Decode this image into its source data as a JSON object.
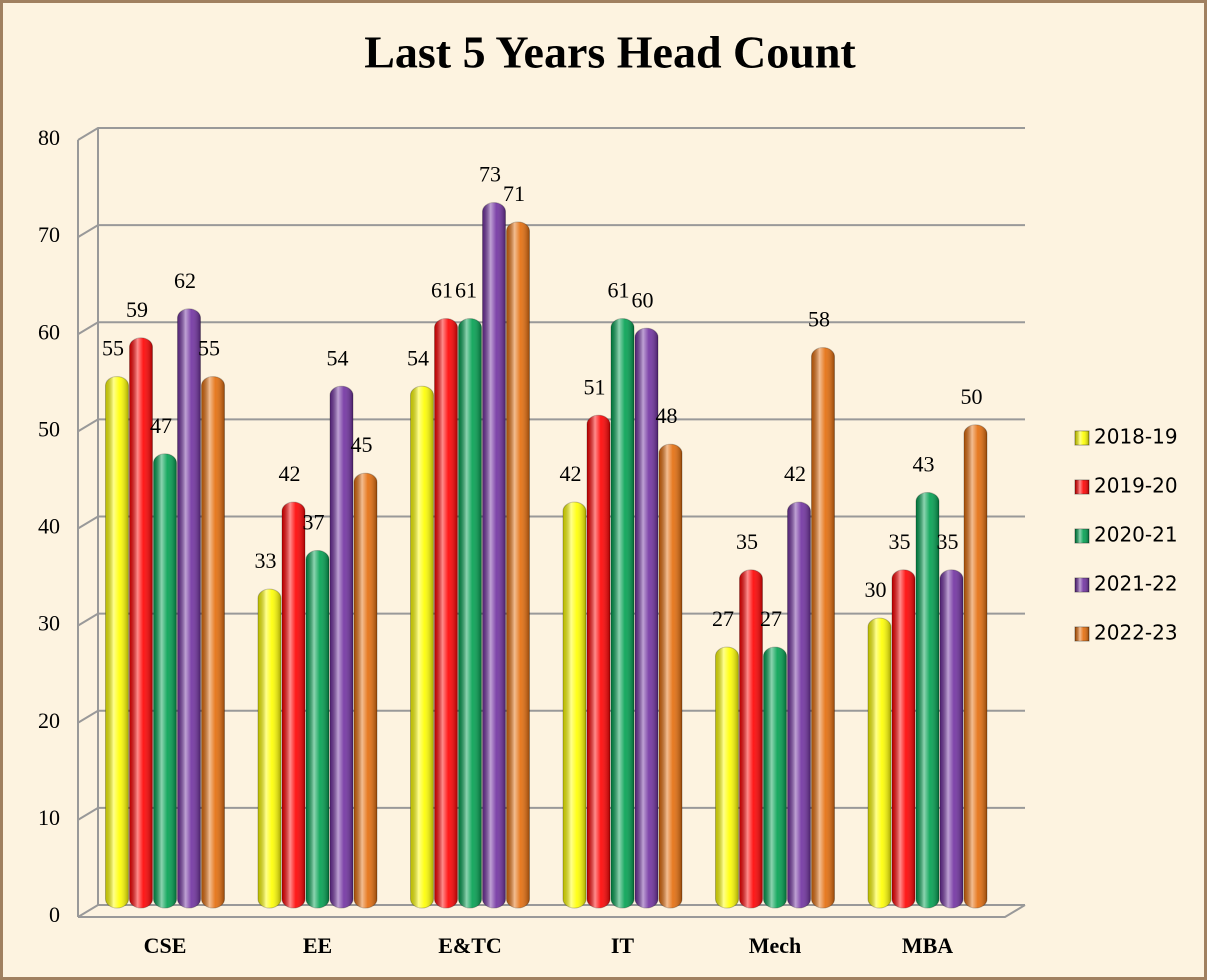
{
  "chart_data": {
    "type": "bar",
    "title": "Last 5 Years Head Count",
    "categories": [
      "CSE",
      "EE",
      "E&TC",
      "IT",
      "Mech",
      "MBA"
    ],
    "series": [
      {
        "name": "2018-19",
        "color": "#ffff00",
        "values": [
          55,
          33,
          54,
          42,
          27,
          30
        ]
      },
      {
        "name": "2019-20",
        "color": "#ff0000",
        "values": [
          59,
          42,
          61,
          51,
          35,
          35
        ]
      },
      {
        "name": "2020-21",
        "color": "#00a050",
        "values": [
          47,
          37,
          61,
          61,
          27,
          43
        ]
      },
      {
        "name": "2021-22",
        "color": "#7030a0",
        "values": [
          62,
          54,
          73,
          60,
          42,
          35
        ]
      },
      {
        "name": "2022-23",
        "color": "#e46c0a",
        "values": [
          55,
          45,
          71,
          48,
          58,
          50
        ]
      }
    ],
    "ylim": [
      0,
      80
    ],
    "yticks": [
      0,
      10,
      20,
      30,
      40,
      50,
      60,
      70,
      80
    ],
    "grid": true,
    "legend": "right"
  }
}
